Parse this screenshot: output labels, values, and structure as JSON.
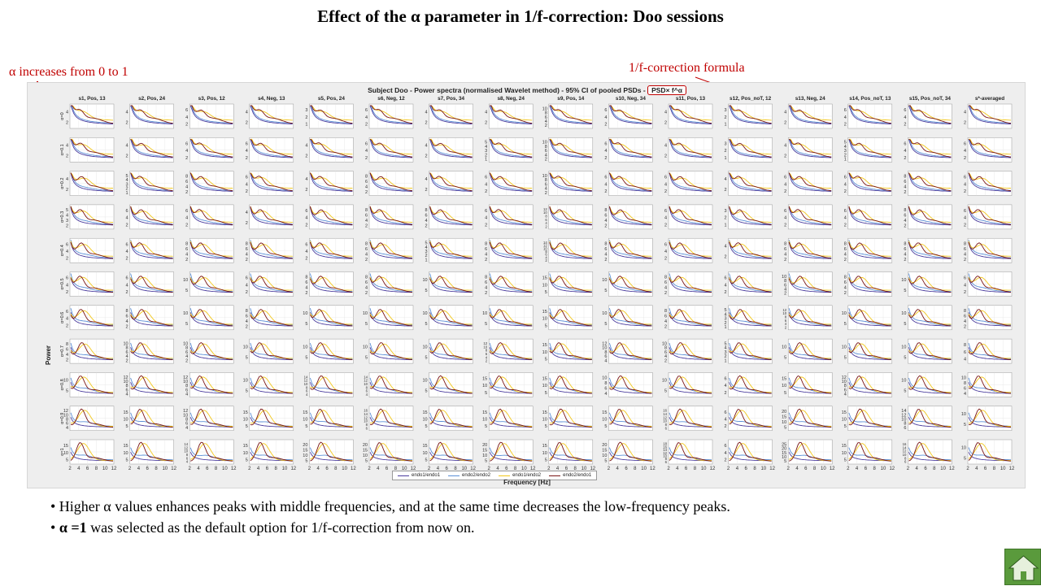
{
  "slide": {
    "title": "Effect of the α parameter in 1/f-correction: Doo sessions",
    "alpha_note": "α increases from 0 to 1",
    "formula_note": "1/f-correction formula"
  },
  "figure": {
    "title_prefix": "Subject Doo - Power spectra (normalised Wavelet method) - 95% CI of pooled PSDs -",
    "formula_text": "PSD× f^α",
    "ylabel": "Power",
    "xlabel": "Frequency [Hz]",
    "xticks": [
      "2",
      "4",
      "6",
      "8",
      "10",
      "12"
    ],
    "columns": [
      "s1, Pos, 13",
      "s2, Pos, 24",
      "s3, Pos, 12",
      "s4, Neg, 13",
      "s5, Pos, 24",
      "s6, Neg, 12",
      "s7, Pos, 34",
      "s8, Neg, 24",
      "s9, Pos, 14",
      "s10, Neg, 34",
      "s11, Pos, 13",
      "s12, Pos_noT, 12",
      "s13, Neg, 24",
      "s14, Pos_noT, 13",
      "s15, Pos_noT, 34",
      "s*-averaged"
    ],
    "rows": [
      "α=0",
      "α=0.1",
      "α=0.2",
      "α=0.3",
      "α=0.4",
      "α=0.5",
      "α=0.6",
      "α=0.7",
      "α=0.8",
      "α=0.9",
      "α=1"
    ],
    "yticks": [
      [
        [
          "4",
          "2"
        ],
        [
          "4",
          "2"
        ],
        [
          "6",
          "4",
          "2"
        ],
        [
          "4",
          "2"
        ],
        [
          "3",
          "2",
          "1"
        ],
        [
          "6",
          "4",
          "2"
        ],
        [
          "4",
          "2"
        ],
        [
          "4",
          "2"
        ],
        [
          "10",
          "8",
          "6",
          "4",
          "2"
        ],
        [
          "6",
          "4",
          "2"
        ],
        [
          "4",
          "2"
        ],
        [
          "3",
          "2",
          "1"
        ],
        [
          "4",
          "2"
        ],
        [
          "6",
          "4",
          "2"
        ],
        [
          "6",
          "4",
          "2"
        ],
        [
          "4",
          "2"
        ]
      ],
      [
        [
          "4",
          "2"
        ],
        [
          "4",
          "2"
        ],
        [
          "6",
          "4",
          "2"
        ],
        [
          "6",
          "4",
          "2"
        ],
        [
          "4",
          "2"
        ],
        [
          "6",
          "4",
          "2"
        ],
        [
          "4",
          "2"
        ],
        [
          "5",
          "4",
          "3",
          "2",
          "1"
        ],
        [
          "10",
          "8",
          "6",
          "4",
          "2"
        ],
        [
          "6",
          "4",
          "2"
        ],
        [
          "4",
          "2"
        ],
        [
          "3",
          "2",
          "1"
        ],
        [
          "4",
          "2"
        ],
        [
          "5",
          "4",
          "3",
          "2",
          "1"
        ],
        [
          "6",
          "4",
          "2"
        ],
        [
          "6",
          "4",
          "2"
        ]
      ],
      [
        [
          "4",
          "2"
        ],
        [
          "5",
          "4",
          "3",
          "2",
          "1"
        ],
        [
          "8",
          "6",
          "4",
          "2"
        ],
        [
          "6",
          "4",
          "2"
        ],
        [
          "4",
          "2"
        ],
        [
          "8",
          "6",
          "4",
          "2"
        ],
        [
          "4",
          "2"
        ],
        [
          "6",
          "4",
          "2"
        ],
        [
          "10",
          "8",
          "6",
          "4",
          "2"
        ],
        [
          "6",
          "4",
          "2"
        ],
        [
          "6",
          "4",
          "2"
        ],
        [
          "4",
          "2"
        ],
        [
          "6",
          "4",
          "2"
        ],
        [
          "6",
          "4",
          "2"
        ],
        [
          "8",
          "6",
          "4",
          "2"
        ],
        [
          "6",
          "4",
          "2"
        ]
      ],
      [
        [
          "5",
          "4",
          "3",
          "2"
        ],
        [
          "6",
          "4",
          "2"
        ],
        [
          "6",
          "4",
          "2"
        ],
        [
          "4",
          "2"
        ],
        [
          "6",
          "4",
          "2"
        ],
        [
          "8",
          "6",
          "4",
          "2"
        ],
        [
          "8",
          "6",
          "4",
          "2"
        ],
        [
          "6",
          "4",
          "2"
        ],
        [
          "12",
          "10",
          "8",
          "6",
          "4",
          "2"
        ],
        [
          "8",
          "6",
          "4",
          "2"
        ],
        [
          "6",
          "4",
          "2"
        ],
        [
          "3",
          "2",
          "1"
        ],
        [
          "6",
          "4",
          "2"
        ],
        [
          "6",
          "4",
          "2"
        ],
        [
          "8",
          "6",
          "4",
          "2"
        ],
        [
          "6",
          "4",
          "2"
        ]
      ],
      [
        [
          "6",
          "4",
          "2"
        ],
        [
          "6",
          "4",
          "2"
        ],
        [
          "8",
          "6",
          "4",
          "2"
        ],
        [
          "8",
          "6",
          "4",
          "2"
        ],
        [
          "6",
          "4",
          "2"
        ],
        [
          "8",
          "6",
          "4",
          "2"
        ],
        [
          "5",
          "4",
          "3",
          "2",
          "1"
        ],
        [
          "8",
          "6",
          "4",
          "2"
        ],
        [
          "14",
          "12",
          "10",
          "8",
          "6",
          "4",
          "2"
        ],
        [
          "8",
          "6",
          "4",
          "2"
        ],
        [
          "6",
          "4",
          "2"
        ],
        [
          "4",
          "2"
        ],
        [
          "8",
          "6",
          "4",
          "2"
        ],
        [
          "8",
          "6",
          "4",
          "2"
        ],
        [
          "8",
          "6",
          "4",
          "2"
        ],
        [
          "8",
          "6",
          "4",
          "2"
        ]
      ],
      [
        [
          "6",
          "4",
          "2"
        ],
        [
          "6",
          "4",
          "2"
        ],
        [
          "10",
          "5"
        ],
        [
          "6",
          "4",
          "2"
        ],
        [
          "8",
          "6",
          "4",
          "2"
        ],
        [
          "8",
          "6",
          "4",
          "2"
        ],
        [
          "10",
          "5"
        ],
        [
          "8",
          "6",
          "4",
          "2"
        ],
        [
          "15",
          "10",
          "5"
        ],
        [
          "10",
          "5"
        ],
        [
          "8",
          "6",
          "4",
          "2"
        ],
        [
          "6",
          "4",
          "2"
        ],
        [
          "10",
          "8",
          "6",
          "4",
          "2"
        ],
        [
          "8",
          "6",
          "4",
          "2"
        ],
        [
          "10",
          "5"
        ],
        [
          "6",
          "4",
          "2"
        ]
      ],
      [
        [
          "6",
          "4",
          "2"
        ],
        [
          "8",
          "6",
          "4",
          "2"
        ],
        [
          "10",
          "5"
        ],
        [
          "8",
          "6",
          "4",
          "2"
        ],
        [
          "10",
          "5"
        ],
        [
          "10",
          "5"
        ],
        [
          "10",
          "5"
        ],
        [
          "10",
          "5"
        ],
        [
          "15",
          "10",
          "5"
        ],
        [
          "10",
          "5"
        ],
        [
          "8",
          "6",
          "4",
          "2"
        ],
        [
          "5",
          "4",
          "3",
          "2",
          "1"
        ],
        [
          "12",
          "10",
          "8",
          "6",
          "4",
          "2"
        ],
        [
          "10",
          "5"
        ],
        [
          "10",
          "5"
        ],
        [
          "8",
          "6",
          "4",
          "2"
        ]
      ],
      [
        [
          "8",
          "6",
          "4",
          "2"
        ],
        [
          "10",
          "8",
          "6",
          "4",
          "2"
        ],
        [
          "10",
          "8",
          "6",
          "4",
          "2"
        ],
        [
          "10",
          "5"
        ],
        [
          "10",
          "5"
        ],
        [
          "10",
          "5"
        ],
        [
          "10",
          "5"
        ],
        [
          "12",
          "10",
          "8",
          "6",
          "4",
          "2"
        ],
        [
          "15",
          "10",
          "5"
        ],
        [
          "12",
          "10",
          "8",
          "6",
          "4"
        ],
        [
          "10",
          "8",
          "6",
          "4",
          "2"
        ],
        [
          "5",
          "4",
          "3",
          "2",
          "1"
        ],
        [
          "10",
          "5"
        ],
        [
          "10",
          "5"
        ],
        [
          "10",
          "5"
        ],
        [
          "8",
          "6",
          "4"
        ]
      ],
      [
        [
          "10",
          "5"
        ],
        [
          "12",
          "10",
          "8",
          "6",
          "4"
        ],
        [
          "12",
          "10",
          "8",
          "6",
          "4"
        ],
        [
          "10",
          "5"
        ],
        [
          "14",
          "12",
          "10",
          "8",
          "6",
          "4"
        ],
        [
          "14",
          "12",
          "10",
          "8",
          "6",
          "4"
        ],
        [
          "10",
          "5"
        ],
        [
          "15",
          "10",
          "5"
        ],
        [
          "15",
          "10",
          "5"
        ],
        [
          "10",
          "8",
          "6",
          "4"
        ],
        [
          "10",
          "5"
        ],
        [
          "6",
          "4",
          "2"
        ],
        [
          "15",
          "10",
          "5"
        ],
        [
          "12",
          "10",
          "8",
          "6",
          "4"
        ],
        [
          "10",
          "5"
        ],
        [
          "10",
          "8",
          "6",
          "4"
        ]
      ],
      [
        [
          "12",
          "10",
          "8",
          "6",
          "4"
        ],
        [
          "15",
          "10",
          "5"
        ],
        [
          "12",
          "10",
          "8",
          "6",
          "4"
        ],
        [
          "15",
          "10",
          "5"
        ],
        [
          "15",
          "10",
          "5"
        ],
        [
          "16",
          "14",
          "12",
          "10",
          "8",
          "6"
        ],
        [
          "15",
          "10",
          "5"
        ],
        [
          "15",
          "10",
          "5"
        ],
        [
          "15",
          "10",
          "5"
        ],
        [
          "15",
          "10",
          "5"
        ],
        [
          "16",
          "14",
          "12",
          "10",
          "8",
          "6"
        ],
        [
          "6",
          "4",
          "2"
        ],
        [
          "20",
          "15",
          "10",
          "5"
        ],
        [
          "15",
          "10",
          "5"
        ],
        [
          "14",
          "12",
          "10",
          "8",
          "6"
        ],
        [
          "10",
          "5"
        ]
      ],
      [
        [
          "15",
          "10",
          "5"
        ],
        [
          "15",
          "10",
          "5"
        ],
        [
          "14",
          "12",
          "10",
          "8",
          "6",
          "4"
        ],
        [
          "15",
          "10",
          "5"
        ],
        [
          "20",
          "15",
          "10",
          "5"
        ],
        [
          "20",
          "15",
          "10",
          "5"
        ],
        [
          "15",
          "10",
          "5"
        ],
        [
          "20",
          "15",
          "10",
          "5"
        ],
        [
          "15",
          "10",
          "5"
        ],
        [
          "20",
          "15",
          "10",
          "5"
        ],
        [
          "18",
          "16",
          "14",
          "12",
          "10",
          "8",
          "6"
        ],
        [
          "6",
          "4",
          "2"
        ],
        [
          "25",
          "20",
          "15",
          "10",
          "5"
        ],
        [
          "15",
          "10",
          "5"
        ],
        [
          "16",
          "14",
          "12",
          "10",
          "8",
          "6"
        ],
        [
          "10",
          "5"
        ]
      ]
    ],
    "legend": [
      {
        "label": "endo1/endo1",
        "color": "#4b3c9e"
      },
      {
        "label": "endo2/endo2",
        "color": "#5b8fd6"
      },
      {
        "label": "endo1/endo2",
        "color": "#f2c71a"
      },
      {
        "label": "endo2/endo1",
        "color": "#7a1515"
      }
    ]
  },
  "bullets": {
    "b1": "• Higher α values enhances peaks with middle frequencies, and at the same time decreases the low-frequency peaks.",
    "b2_bold": "α =1",
    "b2_rest": " was selected as the default option for 1/f-correction from now on."
  },
  "colors": {
    "accent_red": "#c00000",
    "home_green": "#5a9a3c"
  },
  "icons": {
    "home": "home-icon",
    "arrow": "arrow-down-icon"
  }
}
